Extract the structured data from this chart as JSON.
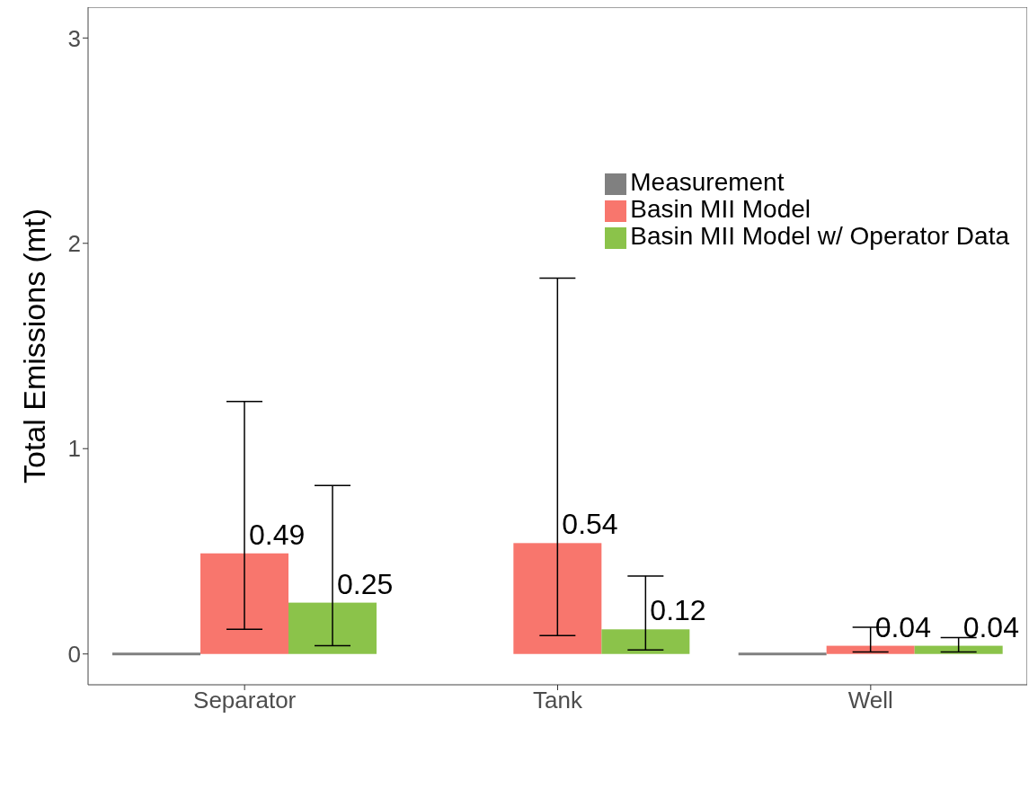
{
  "chart_data": {
    "type": "bar",
    "ylabel": "Total Emissions (mt)",
    "categories": [
      "Separator",
      "Tank",
      "Well"
    ],
    "series": [
      {
        "name": "Measurement",
        "color": "#808080",
        "values": [
          0,
          null,
          0
        ]
      },
      {
        "name": "Basin MII Model",
        "color": "#f8766d",
        "values": [
          0.49,
          0.54,
          0.04
        ],
        "errors": [
          [
            0.12,
            1.23
          ],
          [
            0.09,
            1.83
          ],
          [
            0.01,
            0.13
          ]
        ],
        "value_labels": [
          "0.49",
          "0.54",
          "0.04"
        ]
      },
      {
        "name": "Basin MII Model w/ Operator Data",
        "color": "#8bc34a",
        "values": [
          0.25,
          0.12,
          0.04
        ],
        "errors": [
          [
            0.04,
            0.82
          ],
          [
            0.02,
            0.38
          ],
          [
            0.01,
            0.08
          ]
        ],
        "value_labels": [
          "0.25",
          "0.12",
          "0.04"
        ]
      }
    ],
    "ylim": [
      -0.15,
      3.15
    ],
    "yticks": [
      0,
      1,
      2,
      3
    ],
    "legend": "top right"
  }
}
